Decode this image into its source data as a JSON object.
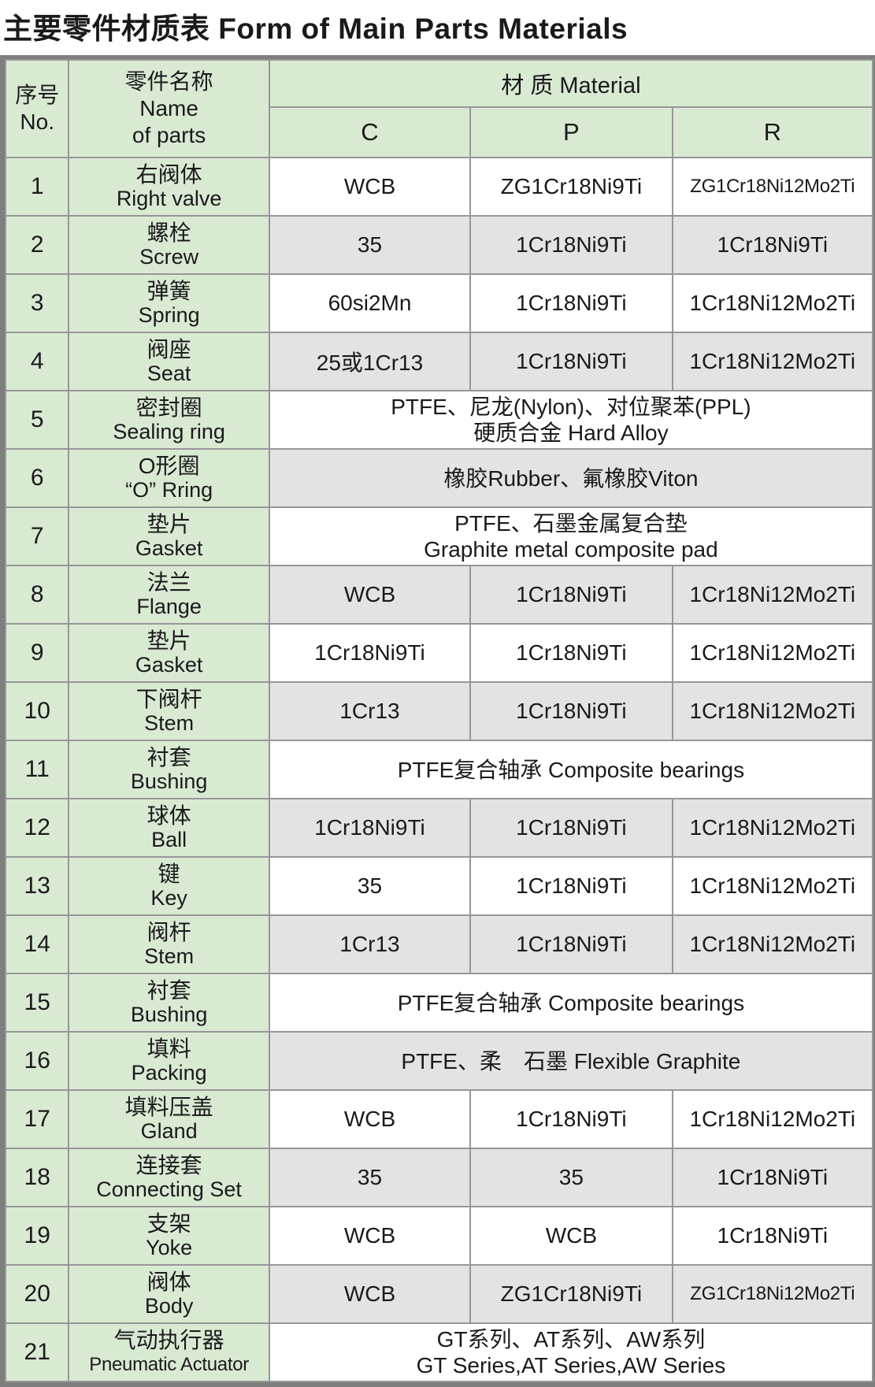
{
  "title": "主要零件材质表 Form of Main Parts Materials",
  "colors": {
    "header_green": "#d9ead3",
    "row_stripe_gray": "#e3e3e3",
    "border_gray": "#979797",
    "text": "#1a1a1a"
  },
  "table": {
    "header": {
      "no_zh": "序号",
      "no_en": "No.",
      "name_zh": "零件名称",
      "name_en_line1": "Name",
      "name_en_line2": "of parts",
      "material": "材 质 Material",
      "variants": [
        "C",
        "P",
        "R"
      ]
    },
    "rows": [
      {
        "no": "1",
        "name_zh": "右阀体",
        "name_en": "Right valve",
        "c": "WCB",
        "p": "ZG1Cr18Ni9Ti",
        "r": "ZG1Cr18Ni12Mo2Ti"
      },
      {
        "no": "2",
        "name_zh": "螺栓",
        "name_en": "Screw",
        "c": "35",
        "p": "1Cr18Ni9Ti",
        "r": "1Cr18Ni9Ti"
      },
      {
        "no": "3",
        "name_zh": "弹簧",
        "name_en": "Spring",
        "c": "60si2Mn",
        "p": "1Cr18Ni9Ti",
        "r": "1Cr18Ni12Mo2Ti"
      },
      {
        "no": "4",
        "name_zh": "阀座",
        "name_en": "Seat",
        "c": "25或1Cr13",
        "p": "1Cr18Ni9Ti",
        "r": "1Cr18Ni12Mo2Ti"
      },
      {
        "no": "5",
        "name_zh": "密封圈",
        "name_en": "Sealing ring",
        "span": [
          "PTFE、尼龙(Nylon)、对位聚苯(PPL)",
          "硬质合金 Hard Alloy"
        ]
      },
      {
        "no": "6",
        "name_zh": "O形圈",
        "name_en": "“O” Rring",
        "span": [
          "橡胶Rubber、氟橡胶Viton"
        ]
      },
      {
        "no": "7",
        "name_zh": "垫片",
        "name_en": "Gasket",
        "span": [
          "PTFE、石墨金属复合垫",
          "Graphite metal composite pad"
        ]
      },
      {
        "no": "8",
        "name_zh": "法兰",
        "name_en": "Flange",
        "c": "WCB",
        "p": "1Cr18Ni9Ti",
        "r": "1Cr18Ni12Mo2Ti"
      },
      {
        "no": "9",
        "name_zh": "垫片",
        "name_en": "Gasket",
        "c": "1Cr18Ni9Ti",
        "p": "1Cr18Ni9Ti",
        "r": "1Cr18Ni12Mo2Ti"
      },
      {
        "no": "10",
        "name_zh": "下阀杆",
        "name_en": "Stem",
        "c": "1Cr13",
        "p": "1Cr18Ni9Ti",
        "r": "1Cr18Ni12Mo2Ti"
      },
      {
        "no": "11",
        "name_zh": "衬套",
        "name_en": "Bushing",
        "span": [
          "PTFE复合轴承 Composite bearings"
        ]
      },
      {
        "no": "12",
        "name_zh": "球体",
        "name_en": "Ball",
        "c": "1Cr18Ni9Ti",
        "p": "1Cr18Ni9Ti",
        "r": "1Cr18Ni12Mo2Ti"
      },
      {
        "no": "13",
        "name_zh": "键",
        "name_en": "Key",
        "c": "35",
        "p": "1Cr18Ni9Ti",
        "r": "1Cr18Ni12Mo2Ti"
      },
      {
        "no": "14",
        "name_zh": "阀杆",
        "name_en": "Stem",
        "c": "1Cr13",
        "p": "1Cr18Ni9Ti",
        "r": "1Cr18Ni12Mo2Ti"
      },
      {
        "no": "15",
        "name_zh": "衬套",
        "name_en": "Bushing",
        "span": [
          "PTFE复合轴承 Composite bearings"
        ]
      },
      {
        "no": "16",
        "name_zh": "填料",
        "name_en": "Packing",
        "span": [
          "PTFE、柔　石墨 Flexible Graphite"
        ]
      },
      {
        "no": "17",
        "name_zh": "填料压盖",
        "name_en": "Gland",
        "c": "WCB",
        "p": "1Cr18Ni9Ti",
        "r": "1Cr18Ni12Mo2Ti"
      },
      {
        "no": "18",
        "name_zh": "连接套",
        "name_en": "Connecting Set",
        "c": "35",
        "p": "35",
        "r": "1Cr18Ni9Ti"
      },
      {
        "no": "19",
        "name_zh": "支架",
        "name_en": "Yoke",
        "c": "WCB",
        "p": "WCB",
        "r": "1Cr18Ni9Ti"
      },
      {
        "no": "20",
        "name_zh": "阀体",
        "name_en": "Body",
        "c": "WCB",
        "p": "ZG1Cr18Ni9Ti",
        "r": "ZG1Cr18Ni12Mo2Ti"
      },
      {
        "no": "21",
        "name_zh": "气动执行器",
        "name_en": "Pneumatic Actuator",
        "span": [
          "GT系列、AT系列、AW系列",
          "GT Series,AT Series,AW Series"
        ]
      }
    ]
  }
}
